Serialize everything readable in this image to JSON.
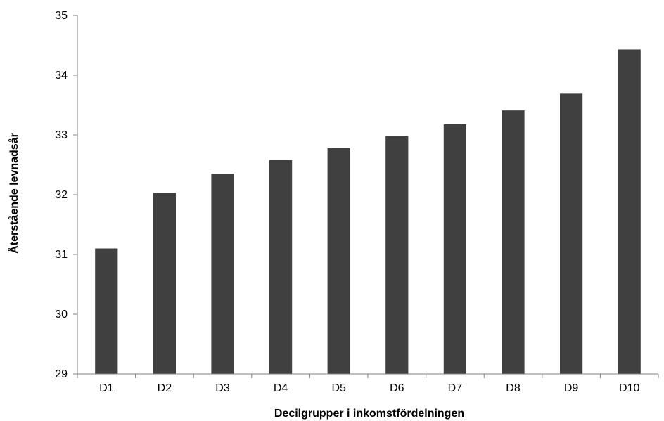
{
  "chart_data": {
    "type": "bar",
    "title": "",
    "xlabel": "Decilgrupper i inkomstfördelningen",
    "ylabel": "Återstående levnadsår",
    "categories": [
      "D1",
      "D2",
      "D3",
      "D4",
      "D5",
      "D6",
      "D7",
      "D8",
      "D9",
      "D10"
    ],
    "values": [
      31.1,
      32.03,
      32.35,
      32.58,
      32.78,
      32.98,
      33.18,
      33.41,
      33.69,
      34.43
    ],
    "ylim": [
      29,
      35
    ],
    "yticks": [
      29,
      30,
      31,
      32,
      33,
      34,
      35
    ],
    "grid": false,
    "legend": "none",
    "bar_color": "#404040",
    "axis_color": "#808080"
  }
}
